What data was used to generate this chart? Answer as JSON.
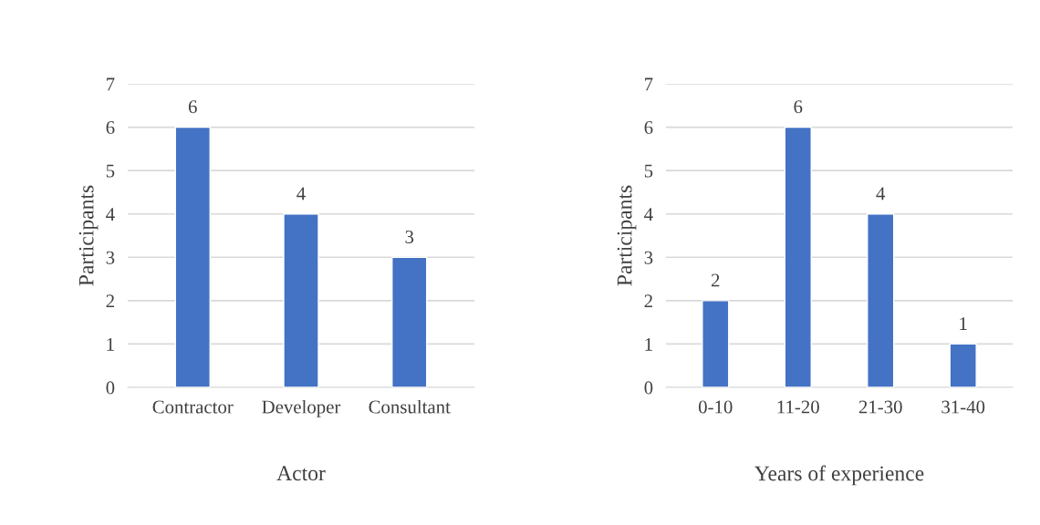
{
  "chart_data": [
    {
      "type": "bar",
      "xlabel": "Actor",
      "ylabel": "Participants",
      "categories": [
        "Contractor",
        "Developer",
        "Consultant"
      ],
      "values": [
        6,
        4,
        3
      ],
      "color": "#4472c4",
      "ylim": [
        0,
        7
      ],
      "yticks": [
        0,
        1,
        2,
        3,
        4,
        5,
        6,
        7
      ],
      "grid": "y",
      "data_labels": true
    },
    {
      "type": "bar",
      "xlabel": "Years of experience",
      "ylabel": "Participants",
      "categories": [
        "0-10",
        "11-20",
        "21-30",
        "31-40"
      ],
      "values": [
        2,
        6,
        4,
        1
      ],
      "color": "#4472c4",
      "ylim": [
        0,
        7
      ],
      "yticks": [
        0,
        1,
        2,
        3,
        4,
        5,
        6,
        7
      ],
      "grid": "y",
      "data_labels": true
    }
  ]
}
